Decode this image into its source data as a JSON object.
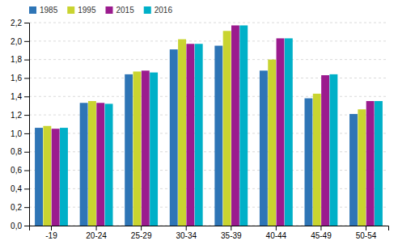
{
  "chart_data": {
    "type": "bar",
    "categories": [
      "-19",
      "20-24",
      "25-29",
      "30-34",
      "35-39",
      "40-44",
      "45-49",
      "50-54"
    ],
    "series": [
      {
        "name": "1985",
        "color": "#2E75B6",
        "values": [
          1.06,
          1.33,
          1.64,
          1.91,
          1.95,
          1.68,
          1.38,
          1.21
        ]
      },
      {
        "name": "1995",
        "color": "#C9D430",
        "values": [
          1.08,
          1.35,
          1.67,
          2.02,
          2.11,
          1.8,
          1.43,
          1.26
        ]
      },
      {
        "name": "2015",
        "color": "#9B1B8E",
        "values": [
          1.05,
          1.33,
          1.68,
          1.97,
          2.17,
          2.03,
          1.63,
          1.35
        ]
      },
      {
        "name": "2016",
        "color": "#00B0C8",
        "values": [
          1.06,
          1.32,
          1.66,
          1.97,
          2.17,
          2.03,
          1.64,
          1.35
        ]
      }
    ],
    "ylim": [
      0,
      2.2
    ],
    "yticks": [
      {
        "value": 0.0,
        "label": "0,0"
      },
      {
        "value": 0.2,
        "label": "0,2"
      },
      {
        "value": 0.4,
        "label": "0,4"
      },
      {
        "value": 0.6,
        "label": "0,6"
      },
      {
        "value": 0.8,
        "label": "0,8"
      },
      {
        "value": 1.0,
        "label": "1,0"
      },
      {
        "value": 1.2,
        "label": "1,2"
      },
      {
        "value": 1.4,
        "label": "1,4"
      },
      {
        "value": 1.6,
        "label": "1,6"
      },
      {
        "value": 1.8,
        "label": "1,8"
      },
      {
        "value": 2.0,
        "label": "2,0"
      },
      {
        "value": 2.2,
        "label": "2,2"
      }
    ],
    "grid": true,
    "legend": "upper left"
  }
}
